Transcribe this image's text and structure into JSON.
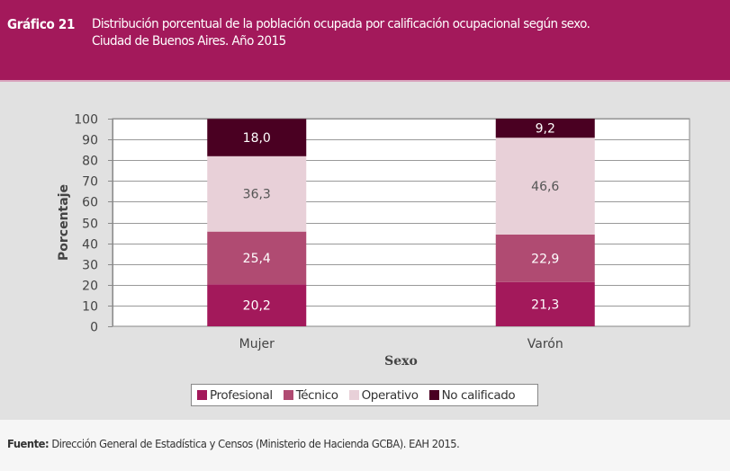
{
  "header": {
    "label": "Gráfico 21",
    "title_line1": "Distribución porcentual de la población ocupada por calificación ocupacional según sexo.",
    "title_line2": "Ciudad de Buenos Aires. Año 2015"
  },
  "footer": {
    "source_label": "Fuente:",
    "source_text": "Dirección General de Estadística y Censos (Ministerio de Hacienda GCBA). EAH 2015."
  },
  "colors": {
    "header_bg": "#a3195b",
    "Profesional": "#a3195b",
    "Técnico": "#b04b72",
    "Operativo": "#e8d0d8",
    "No calificado": "#4a0022"
  },
  "chart_data": {
    "type": "bar",
    "stacked": true,
    "title": "Distribución porcentual de la población ocupada por calificación ocupacional según sexo. Ciudad de Buenos Aires. Año 2015",
    "xlabel": "Sexo",
    "ylabel": "Porcentaje",
    "ylim": [
      0,
      100
    ],
    "yticks": [
      0,
      10,
      20,
      30,
      40,
      50,
      60,
      70,
      80,
      90,
      100
    ],
    "categories": [
      "Mujer",
      "Varón"
    ],
    "series": [
      {
        "name": "Profesional",
        "values": [
          20.2,
          21.3
        ],
        "labels": [
          "20,2",
          "21,3"
        ]
      },
      {
        "name": "Técnico",
        "values": [
          25.4,
          22.9
        ],
        "labels": [
          "25,4",
          "22,9"
        ]
      },
      {
        "name": "Operativo",
        "values": [
          36.3,
          46.6
        ],
        "labels": [
          "36,3",
          "46,6"
        ]
      },
      {
        "name": "No calificado",
        "values": [
          18.0,
          9.2
        ],
        "labels": [
          "18,0",
          "9,2"
        ]
      }
    ],
    "grid": true,
    "legend_position": "bottom"
  }
}
